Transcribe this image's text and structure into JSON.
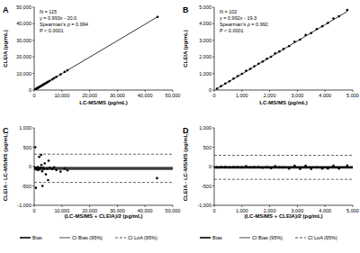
{
  "chart_data": [
    {
      "type": "scatter",
      "panel": "A",
      "color": "#000000",
      "marker": "circle",
      "grid": false,
      "x_label": "LC-MS/MS (pg/mL)",
      "y_label": "CLEIA (pg/mL)",
      "annotations": [
        "N = 115",
        "y = 0.993x - 20.0",
        "Spearman's ρ = 0.994",
        "P < 0.0001"
      ],
      "x": [
        150,
        300,
        450,
        600,
        800,
        1000,
        1200,
        1400,
        1600,
        1800,
        2000,
        2300,
        2600,
        2900,
        3200,
        3500,
        3800,
        4200,
        4600,
        5000,
        5600,
        6500,
        7200,
        8000,
        9500,
        11000,
        12000,
        44500
      ],
      "values": [
        140,
        285,
        430,
        610,
        780,
        1010,
        1180,
        1390,
        1610,
        1770,
        1990,
        2270,
        2610,
        2860,
        3170,
        3480,
        3770,
        4150,
        4570,
        4950,
        5530,
        6450,
        7180,
        7950,
        9420,
        10950,
        11900,
        44150
      ],
      "fit": {
        "slope": 0.993,
        "intercept": -20.0
      },
      "xlim": [
        0,
        50000
      ],
      "ylim": [
        0,
        50000
      ],
      "xticks": [
        0,
        {
          "value": 10000,
          "label": "10,000"
        },
        {
          "value": 20000,
          "label": "20,000"
        },
        {
          "value": 30000,
          "label": "30,000"
        },
        {
          "value": 40000,
          "label": "40,000"
        },
        {
          "value": 50000,
          "label": "50,000"
        }
      ],
      "yticks": [
        0,
        {
          "value": 10000,
          "label": "10,000"
        },
        {
          "value": 20000,
          "label": "20,000"
        },
        {
          "value": 30000,
          "label": "30,000"
        },
        {
          "value": 40000,
          "label": "40,000"
        },
        {
          "value": 50000,
          "label": "50,000"
        }
      ]
    },
    {
      "type": "scatter",
      "panel": "B",
      "color": "#000000",
      "marker": "circle",
      "grid": false,
      "x_label": "LC-MS/MS (pg/mL)",
      "y_label": "CLEIA (pg/mL)",
      "annotations": [
        "N = 102",
        "y = 0.992x - 19.3",
        "Spearman's ρ = 0.992",
        "P < 0.0001"
      ],
      "x": [
        100,
        250,
        400,
        550,
        700,
        850,
        1000,
        1150,
        1300,
        1450,
        1600,
        1750,
        1900,
        2050,
        2200,
        2350,
        2500,
        2700,
        2900,
        3100,
        3300,
        3500,
        3700,
        3900,
        4100,
        4300,
        4500,
        4800
      ],
      "values": [
        80,
        240,
        390,
        530,
        690,
        840,
        980,
        1160,
        1280,
        1440,
        1590,
        1720,
        1890,
        2010,
        2210,
        2330,
        2480,
        2650,
        2920,
        3040,
        3320,
        3440,
        3680,
        3850,
        4050,
        4320,
        4450,
        4830
      ],
      "fit": {
        "slope": 0.992,
        "intercept": -19.3
      },
      "xlim": [
        0,
        5000
      ],
      "ylim": [
        0,
        5000
      ],
      "xticks": [
        0,
        {
          "value": 1000,
          "label": "1,000"
        },
        {
          "value": 2000,
          "label": "2,000"
        },
        {
          "value": 3000,
          "label": "3,000"
        },
        {
          "value": 4000,
          "label": "4,000"
        },
        {
          "value": 5000,
          "label": "5,000"
        }
      ],
      "yticks": [
        0,
        {
          "value": 1000,
          "label": "1,000"
        },
        {
          "value": 2000,
          "label": "2,000"
        },
        {
          "value": 3000,
          "label": "3,000"
        },
        {
          "value": 4000,
          "label": "4,000"
        },
        {
          "value": 5000,
          "label": "5,000"
        }
      ]
    },
    {
      "type": "scatter",
      "panel": "C",
      "color": "#000000",
      "marker": "circle",
      "grid": false,
      "x_label": "(LC-MS/MS + CLEIA)/2 (pg/mL)",
      "y_label": "CLEIA - LC-MS/MS (pg/mL)",
      "x": [
        150,
        300,
        400,
        500,
        600,
        700,
        900,
        1100,
        1300,
        1500,
        1700,
        1800,
        2000,
        2300,
        2500,
        2600,
        2900,
        3000,
        3200,
        3500,
        3800,
        4200,
        4600,
        5000,
        5200,
        5600,
        6500,
        7200,
        8000,
        9500,
        11000,
        12000,
        44300
      ],
      "values": [
        -20,
        -40,
        500,
        -60,
        -550,
        -30,
        -80,
        -50,
        -10,
        -90,
        -40,
        250,
        -70,
        -30,
        300,
        40,
        -120,
        -500,
        -30,
        -60,
        80,
        -200,
        -50,
        -350,
        150,
        -30,
        -60,
        -20,
        -90,
        -130,
        -50,
        -100,
        -300
      ],
      "hlines": [
        {
          "name": "Bias",
          "values": [
            -48
          ],
          "line_style": "solid"
        },
        {
          "name": "CI Bias (95%)",
          "values": [
            -80,
            -16
          ],
          "line_style": "solid"
        },
        {
          "name": "CI LoA (95%)",
          "values": [
            -410,
            320
          ],
          "line_style": "dashed"
        }
      ],
      "xlim": [
        0,
        50000
      ],
      "ylim": [
        -1000,
        1000
      ],
      "xticks": [
        0,
        {
          "value": 10000,
          "label": "10,000"
        },
        {
          "value": 20000,
          "label": "20,000"
        },
        {
          "value": 30000,
          "label": "30,000"
        },
        {
          "value": 40000,
          "label": "40,000"
        },
        {
          "value": 50000,
          "label": "50,000"
        }
      ],
      "yticks": [
        {
          "value": -1000,
          "label": "-1,000"
        },
        -500,
        0,
        500,
        {
          "value": 1000,
          "label": "1,000"
        }
      ]
    },
    {
      "type": "scatter",
      "panel": "D",
      "color": "#000000",
      "marker": "circle",
      "grid": false,
      "x_label": "(LC-MS/MS + CLEIA)/2 (pg/mL)",
      "y_label": "CLEIA - LC-MS/MS (pg/mL)",
      "x": [
        100,
        250,
        400,
        550,
        700,
        850,
        1000,
        1150,
        1300,
        1450,
        1600,
        1750,
        1900,
        2050,
        2200,
        2350,
        2500,
        2700,
        2900,
        3100,
        3300,
        3500,
        3700,
        3900,
        4100,
        4300,
        4500,
        4800
      ],
      "values": [
        -20,
        -10,
        -10,
        -20,
        -10,
        -10,
        -20,
        10,
        -20,
        -10,
        -10,
        -30,
        -10,
        -40,
        10,
        -20,
        -20,
        -50,
        20,
        -60,
        20,
        -60,
        -20,
        -50,
        -50,
        20,
        -50,
        30
      ],
      "hlines": [
        {
          "name": "Bias",
          "values": [
            -20
          ],
          "line_style": "solid"
        },
        {
          "name": "CI Bias (95%)",
          "values": [
            -45,
            5
          ],
          "line_style": "solid"
        },
        {
          "name": "CI LoA (95%)",
          "values": [
            -330,
            290
          ],
          "line_style": "dashed"
        }
      ],
      "xlim": [
        0,
        5000
      ],
      "ylim": [
        -1000,
        1000
      ],
      "xticks": [
        0,
        {
          "value": 1000,
          "label": "1,000"
        },
        {
          "value": 2000,
          "label": "2,000"
        },
        {
          "value": 3000,
          "label": "3,000"
        },
        {
          "value": 4000,
          "label": "4,000"
        },
        {
          "value": 5000,
          "label": "5,000"
        }
      ],
      "yticks": [
        {
          "value": -1000,
          "label": "-1,000"
        },
        -500,
        0,
        500,
        {
          "value": 1000,
          "label": "1,000"
        }
      ]
    }
  ]
}
